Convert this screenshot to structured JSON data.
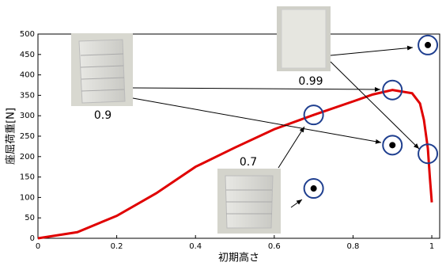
{
  "chart_data": {
    "type": "line",
    "x_label": "初期高さ",
    "y_label": "座屈荷重[N]",
    "xlim": [
      0,
      1.02
    ],
    "ylim": [
      0,
      500
    ],
    "xticks": [
      0,
      0.2,
      0.4,
      0.6,
      0.8,
      1
    ],
    "yticks": [
      0,
      50,
      100,
      150,
      200,
      250,
      300,
      350,
      400,
      450,
      500
    ],
    "series": [
      {
        "color": "#e00000",
        "x": [
          0,
          0.1,
          0.2,
          0.3,
          0.4,
          0.5,
          0.6,
          0.7,
          0.8,
          0.85,
          0.9,
          0.95,
          0.97,
          0.98,
          0.99,
          0.995,
          1.0
        ],
        "values": [
          0,
          15,
          55,
          110,
          175,
          222,
          267,
          302,
          335,
          352,
          363,
          355,
          330,
          290,
          220,
          150,
          88
        ]
      }
    ],
    "open_markers": {
      "x": [
        0.7,
        0.9,
        0.99
      ],
      "values": [
        302,
        363,
        207
      ]
    },
    "filled_markers": {
      "x": [
        0.7,
        0.9,
        0.99
      ],
      "values": [
        122,
        228,
        473
      ]
    },
    "annotations": [
      "0.9",
      "0.7",
      "0.99"
    ]
  }
}
